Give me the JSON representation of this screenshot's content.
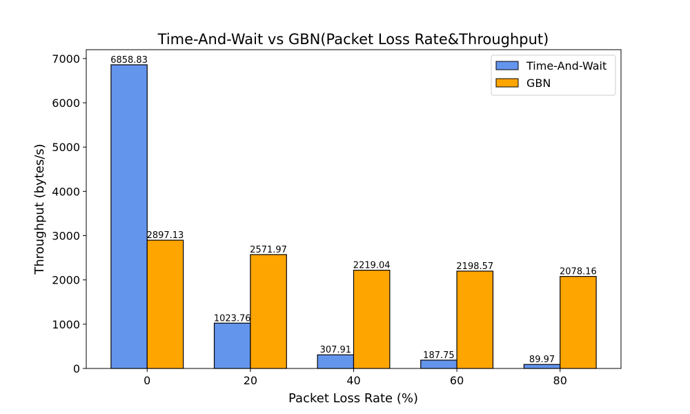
{
  "chart_data": {
    "type": "bar",
    "title": "Time-And-Wait vs GBN(Packet Loss Rate&Throughput)",
    "xlabel": "Packet Loss Rate (%)",
    "ylabel": "Throughput (bytes/s)",
    "categories": [
      "0",
      "20",
      "40",
      "60",
      "80"
    ],
    "series": [
      {
        "name": "Time-And-Wait",
        "color": "#6495ED",
        "values": [
          6858.83,
          1023.76,
          307.91,
          187.75,
          89.97
        ],
        "value_labels": [
          "6858.83",
          "1023.76",
          "307.91",
          "187.75",
          "89.97"
        ]
      },
      {
        "name": "GBN",
        "color": "#FFA500",
        "values": [
          2897.13,
          2571.97,
          2219.04,
          2198.57,
          2078.16
        ],
        "value_labels": [
          "2897.13",
          "2571.97",
          "2219.04",
          "2198.57",
          "2078.16"
        ]
      }
    ],
    "ylim": [
      0,
      7200
    ],
    "yticks": [
      0,
      1000,
      2000,
      3000,
      4000,
      5000,
      6000,
      7000
    ],
    "grid": false,
    "legend_position": "upper right"
  }
}
